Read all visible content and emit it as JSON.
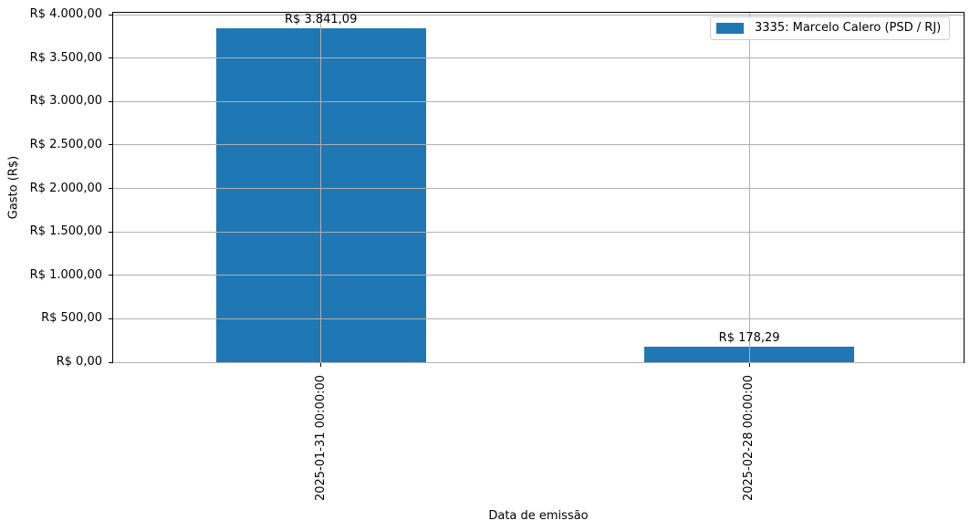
{
  "chart_data": {
    "type": "bar",
    "title": "",
    "xlabel": "Data de emissão",
    "ylabel": "Gasto (R$)",
    "categories": [
      "2025-01-31 00:00:00",
      "2025-02-28 00:00:00"
    ],
    "series": [
      {
        "name": "3335: Marcelo Calero (PSD / RJ)",
        "color": "#1f77b4",
        "values": [
          3841.09,
          178.29
        ]
      }
    ],
    "bar_value_labels": [
      "R$ 3.841,09",
      "R$ 178,29"
    ],
    "y_ticks": [
      {
        "value": 0,
        "label": "R$ 0,00"
      },
      {
        "value": 500,
        "label": "R$ 500,00"
      },
      {
        "value": 1000,
        "label": "R$ 1.000,00"
      },
      {
        "value": 1500,
        "label": "R$ 1.500,00"
      },
      {
        "value": 2000,
        "label": "R$ 2.000,00"
      },
      {
        "value": 2500,
        "label": "R$ 2.500,00"
      },
      {
        "value": 3000,
        "label": "R$ 3.000,00"
      },
      {
        "value": 3500,
        "label": "R$ 3.500,00"
      },
      {
        "value": 4000,
        "label": "R$ 4.000,00"
      }
    ],
    "ylim": [
      0,
      4023
    ],
    "grid": true,
    "grid_color": "#b0b0b0",
    "axis_color": "#000000",
    "legend": {
      "position": "upper right",
      "entries": [
        {
          "label": "3335: Marcelo Calero (PSD / RJ)",
          "color": "#1f77b4"
        }
      ]
    }
  }
}
